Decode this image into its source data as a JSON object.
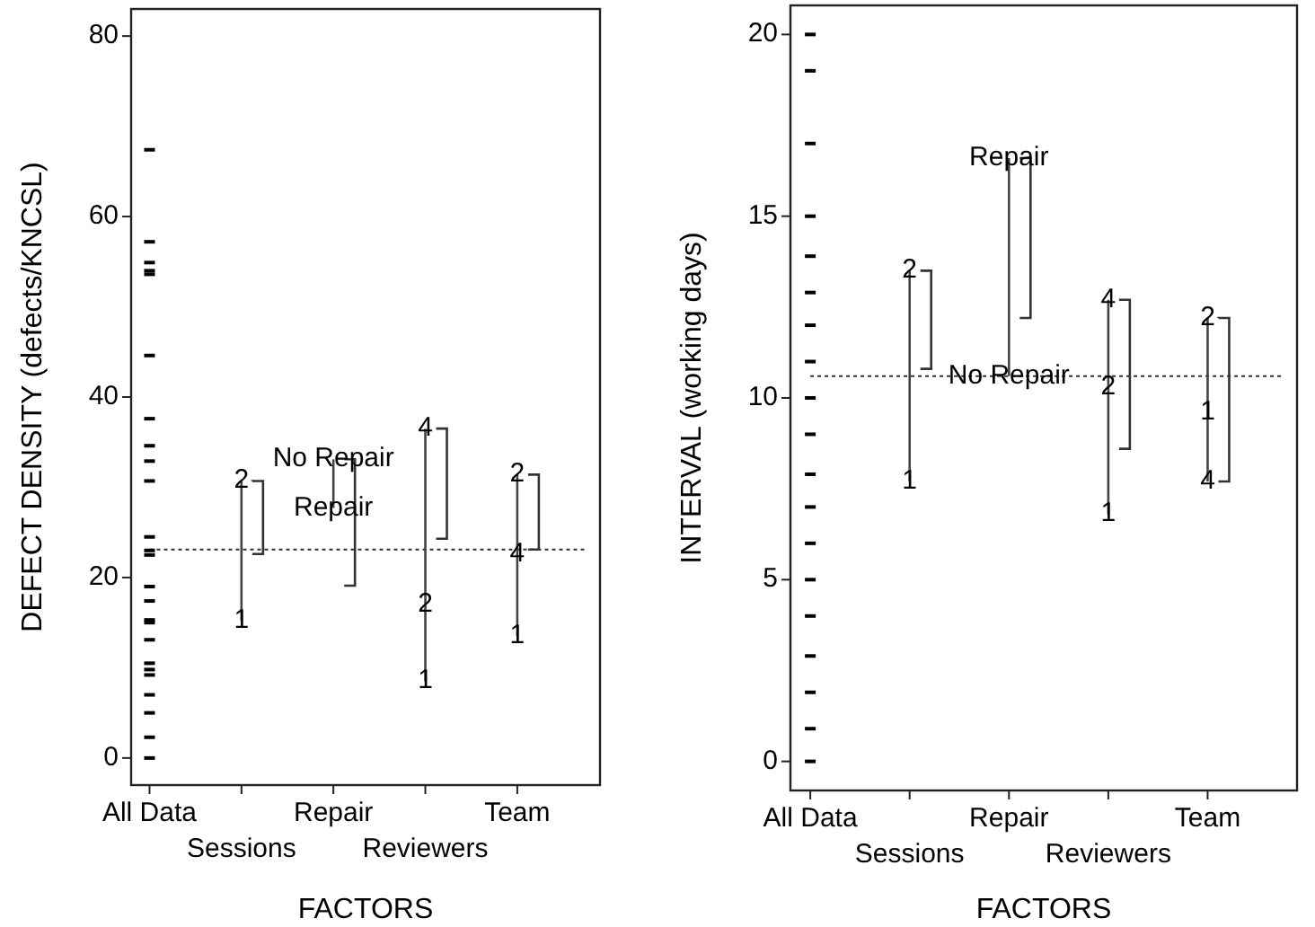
{
  "chart_data": [
    {
      "type": "scatter",
      "xlabel": "FACTORS",
      "ylabel": "DEFECT DENSITY (defects/KNCSL)",
      "categories": [
        "All Data",
        "Sessions",
        "Repair",
        "Reviewers",
        "Team"
      ],
      "ylim": [
        -3,
        83
      ],
      "yticks": [
        0,
        20,
        40,
        60,
        80
      ],
      "ref_lines": [
        {
          "axis": "y",
          "value": 23.1,
          "line_style": "dotted",
          "color": "#333333"
        }
      ],
      "annotations": [
        {
          "text": "1",
          "x": "Sessions",
          "y": 15.2
        },
        {
          "text": "2",
          "x": "Sessions",
          "y": 30.7
        },
        {
          "text": "Repair",
          "x": "Repair",
          "y": 27.7
        },
        {
          "text": "No Repair",
          "x": "Repair",
          "y": 33.1
        },
        {
          "text": "1",
          "x": "Reviewers",
          "y": 8.5
        },
        {
          "text": "2",
          "x": "Reviewers",
          "y": 17.0
        },
        {
          "text": "4",
          "x": "Reviewers",
          "y": 36.5
        },
        {
          "text": "1",
          "x": "Team",
          "y": 13.5
        },
        {
          "text": "4",
          "x": "Team",
          "y": 22.6
        },
        {
          "text": "2",
          "x": "Team",
          "y": 31.4
        }
      ],
      "series": [
        {
          "marker": "square",
          "color": "#000000",
          "x": [
            "All Data",
            "All Data",
            "All Data",
            "All Data",
            "All Data",
            "All Data",
            "All Data",
            "All Data",
            "All Data",
            "All Data",
            "All Data",
            "All Data",
            "All Data",
            "All Data",
            "All Data",
            "All Data",
            "All Data",
            "All Data",
            "All Data",
            "All Data",
            "All Data",
            "All Data",
            "All Data",
            "All Data",
            "All Data"
          ],
          "values": [
            67.4,
            57.2,
            54.9,
            54.0,
            53.6,
            44.6,
            37.6,
            34.6,
            32.9,
            30.7,
            24.5,
            23.0,
            22.5,
            19.0,
            17.4,
            15.3,
            15.0,
            13.1,
            10.5,
            9.8,
            9.2,
            7.0,
            5.0,
            2.3,
            0
          ]
        },
        {
          "type": "line",
          "marker": "none",
          "color": "#444444",
          "x": [
            "Sessions",
            "Sessions"
          ],
          "values": [
            15.2,
            30.7
          ]
        },
        {
          "type": "line",
          "marker": "none",
          "color": "#444444",
          "x": [
            "Repair",
            "Repair"
          ],
          "values": [
            27.7,
            33.1
          ]
        },
        {
          "type": "line",
          "marker": "none",
          "color": "#444444",
          "x": [
            "Reviewers",
            "Reviewers",
            "Reviewers"
          ],
          "values": [
            8.5,
            17.0,
            36.5
          ]
        },
        {
          "type": "line",
          "marker": "none",
          "color": "#444444",
          "x": [
            "Team",
            "Team",
            "Team"
          ],
          "values": [
            13.5,
            22.6,
            31.4
          ]
        },
        {
          "type": "bar",
          "color": "#333333",
          "x": [
            "Sessions",
            "Repair",
            "Reviewers",
            "Team"
          ],
          "base": [
            22.6,
            19.1,
            24.3,
            23.1
          ],
          "values": [
            8.1,
            14.0,
            12.2,
            8.3
          ]
        }
      ]
    },
    {
      "type": "scatter",
      "xlabel": "FACTORS",
      "ylabel": "INTERVAL (working days)",
      "categories": [
        "All Data",
        "Sessions",
        "Repair",
        "Reviewers",
        "Team"
      ],
      "ylim": [
        -0.8,
        20.8
      ],
      "yticks": [
        0,
        5,
        10,
        15,
        20
      ],
      "ref_lines": [
        {
          "axis": "y",
          "value": 10.6,
          "line_style": "dotted",
          "color": "#333333"
        }
      ],
      "annotations": [
        {
          "text": "1",
          "x": "Sessions",
          "y": 7.7
        },
        {
          "text": "2",
          "x": "Sessions",
          "y": 13.5
        },
        {
          "text": "No Repair",
          "x": "Repair",
          "y": 10.6
        },
        {
          "text": "Repair",
          "x": "Repair",
          "y": 16.6
        },
        {
          "text": "1",
          "x": "Reviewers",
          "y": 6.8
        },
        {
          "text": "2",
          "x": "Reviewers",
          "y": 10.3
        },
        {
          "text": "4",
          "x": "Reviewers",
          "y": 12.7
        },
        {
          "text": "4",
          "x": "Team",
          "y": 7.7
        },
        {
          "text": "1",
          "x": "Team",
          "y": 9.6
        },
        {
          "text": "2",
          "x": "Team",
          "y": 12.2
        }
      ],
      "series": [
        {
          "marker": "square",
          "color": "#000000",
          "x": [
            "All Data",
            "All Data",
            "All Data",
            "All Data",
            "All Data",
            "All Data",
            "All Data",
            "All Data",
            "All Data",
            "All Data",
            "All Data",
            "All Data",
            "All Data",
            "All Data",
            "All Data",
            "All Data",
            "All Data",
            "All Data",
            "All Data"
          ],
          "values": [
            20,
            19,
            17,
            15,
            13.9,
            12.9,
            12,
            11,
            10,
            9,
            7.9,
            7,
            6,
            5,
            4,
            2.9,
            1.9,
            0.9,
            0
          ]
        },
        {
          "type": "line",
          "marker": "none",
          "color": "#444444",
          "x": [
            "Sessions",
            "Sessions"
          ],
          "values": [
            7.7,
            13.5
          ]
        },
        {
          "type": "line",
          "marker": "none",
          "color": "#444444",
          "x": [
            "Repair",
            "Repair"
          ],
          "values": [
            10.6,
            16.6
          ]
        },
        {
          "type": "line",
          "marker": "none",
          "color": "#444444",
          "x": [
            "Reviewers",
            "Reviewers",
            "Reviewers"
          ],
          "values": [
            6.8,
            10.3,
            12.7
          ]
        },
        {
          "type": "line",
          "marker": "none",
          "color": "#444444",
          "x": [
            "Team",
            "Team",
            "Team"
          ],
          "values": [
            7.7,
            9.6,
            12.2
          ]
        },
        {
          "type": "bar",
          "color": "#333333",
          "x": [
            "Sessions",
            "Repair",
            "Reviewers",
            "Team"
          ],
          "base": [
            10.8,
            12.2,
            8.6,
            7.7
          ],
          "values": [
            2.7,
            4.4,
            4.1,
            4.5
          ]
        }
      ]
    }
  ]
}
